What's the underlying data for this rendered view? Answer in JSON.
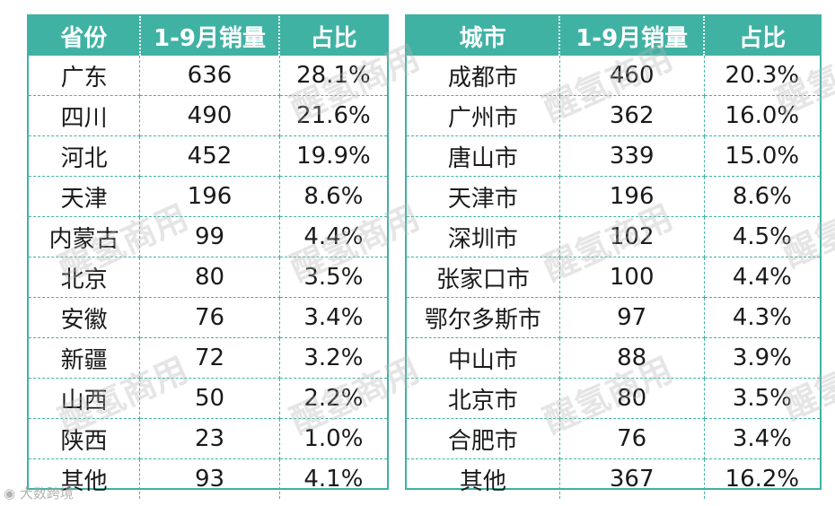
{
  "province_table": {
    "headers": [
      "省份",
      "1-9月销量",
      "占比"
    ],
    "rows": [
      [
        "广东",
        "636",
        "28.1%"
      ],
      [
        "四川",
        "490",
        "21.6%"
      ],
      [
        "河北",
        "452",
        "19.9%"
      ],
      [
        "天津",
        "196",
        "8.6%"
      ],
      [
        "内蒙古",
        "99",
        "4.4%"
      ],
      [
        "北京",
        "80",
        "3.5%"
      ],
      [
        "安徽",
        "76",
        "3.4%"
      ],
      [
        "新疆",
        "72",
        "3.2%"
      ],
      [
        "山西",
        "50",
        "2.2%"
      ],
      [
        "陕西",
        "23",
        "1.0%"
      ],
      [
        "其他",
        "93",
        "4.1%"
      ]
    ]
  },
  "city_table": {
    "headers": [
      "城市",
      "1-9月销量",
      "占比"
    ],
    "rows": [
      [
        "成都市",
        "460",
        "20.3%"
      ],
      [
        "广州市",
        "362",
        "16.0%"
      ],
      [
        "唐山市",
        "339",
        "15.0%"
      ],
      [
        "天津市",
        "196",
        "8.6%"
      ],
      [
        "深圳市",
        "102",
        "4.5%"
      ],
      [
        "张家口市",
        "100",
        "4.4%"
      ],
      [
        "鄂尔多斯市",
        "97",
        "4.3%"
      ],
      [
        "中山市",
        "88",
        "3.9%"
      ],
      [
        "北京市",
        "80",
        "3.5%"
      ],
      [
        "合肥市",
        "76",
        "3.4%"
      ],
      [
        "其他",
        "367",
        "16.2%"
      ]
    ]
  },
  "watermark": {
    "text": "醒氢商用",
    "brand": "大数跨境"
  },
  "colors": {
    "header_bg": "#3fb2a4",
    "header_text": "#ffffff",
    "grid": "#3fb2a4"
  }
}
